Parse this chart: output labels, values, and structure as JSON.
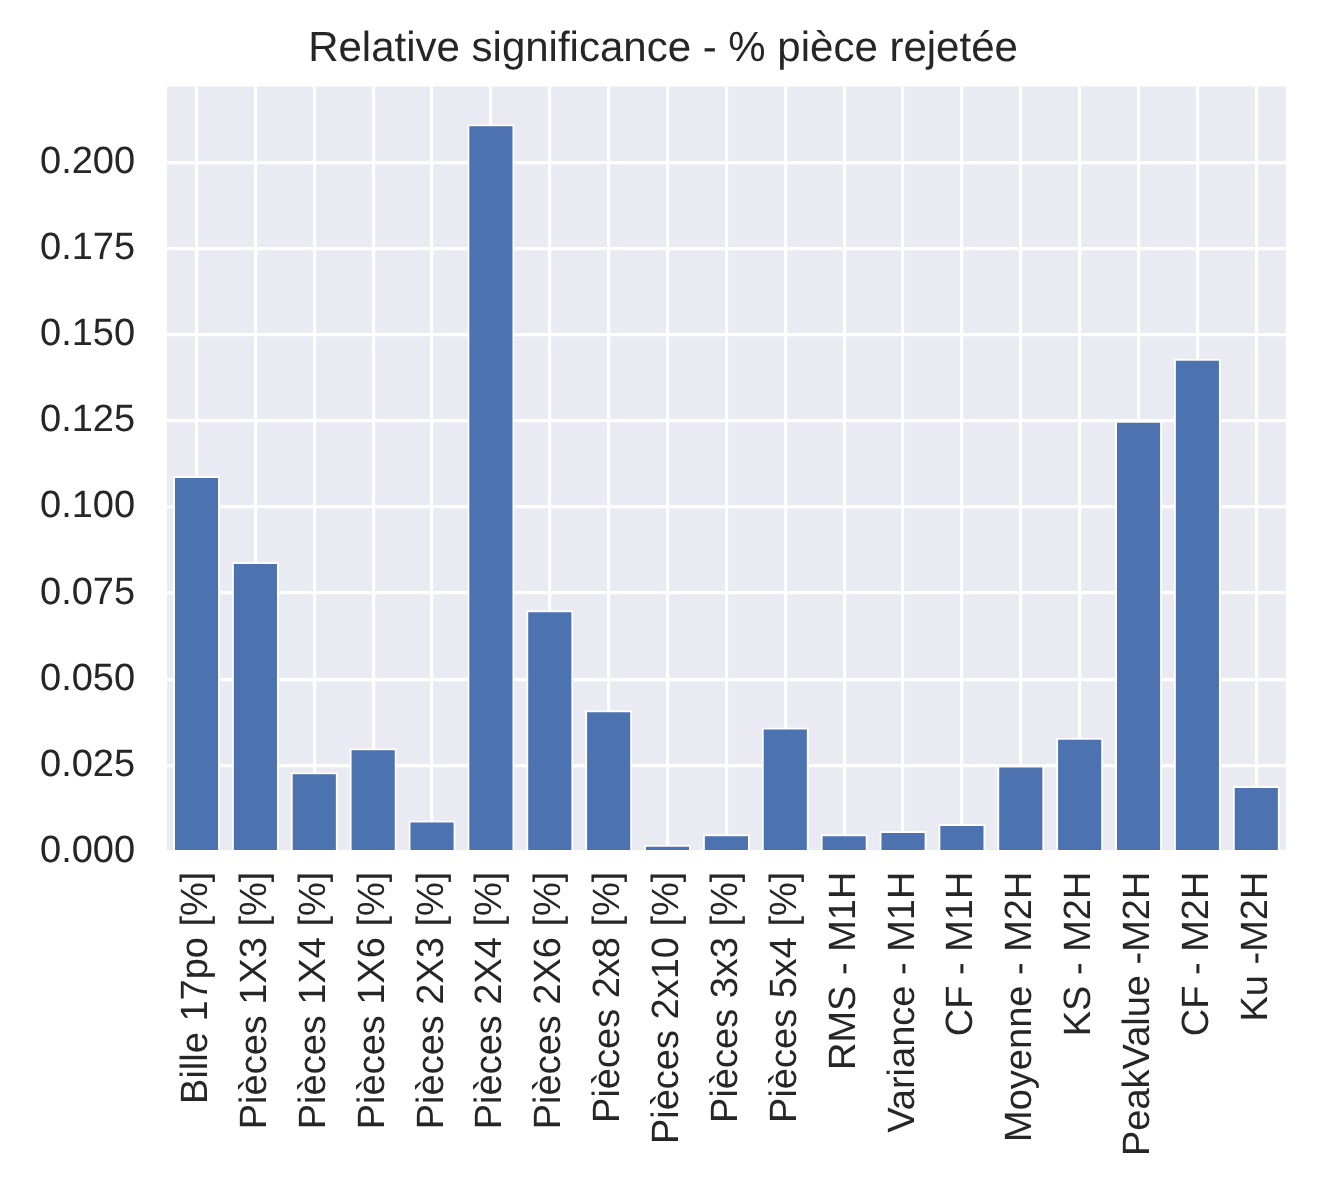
{
  "chart_data": {
    "type": "bar",
    "title": "Relative significance - % pièce rejetée",
    "categories": [
      "Bille 17po [%]",
      "Pièces 1X3 [%]",
      "Pièces 1X4 [%]",
      "Pièces 1X6 [%]",
      "Pièces 2X3 [%]",
      "Pièces 2X4 [%]",
      "Pièces 2X6 [%]",
      "Pièces 2x8 [%]",
      "Pièces 2x10 [%]",
      "Pièces 3x3 [%]",
      "Pièces 5x4 [%]",
      "RMS - M1H",
      "Variance - M1H",
      "CF - M1H",
      "Moyenne - M2H",
      "KS - M2H",
      "PeakValue -M2H",
      "CF - M2H",
      "Ku -M2H"
    ],
    "values": [
      0.109,
      0.084,
      0.023,
      0.03,
      0.009,
      0.211,
      0.07,
      0.041,
      0.002,
      0.005,
      0.036,
      0.005,
      0.006,
      0.008,
      0.025,
      0.033,
      0.125,
      0.143,
      0.019
    ],
    "color": "#4c72b0",
    "ylim": [
      0,
      0.222
    ],
    "yticks": [
      {
        "value": 0,
        "label": "0.000"
      },
      0.025,
      {
        "value": 0.05,
        "label": "0.050"
      },
      0.075,
      {
        "value": 0.1,
        "label": "0.100"
      },
      0.125,
      {
        "value": 0.15,
        "label": "0.150"
      },
      0.175,
      {
        "value": 0.2,
        "label": "0.200"
      }
    ],
    "grid": true,
    "legend": false
  }
}
